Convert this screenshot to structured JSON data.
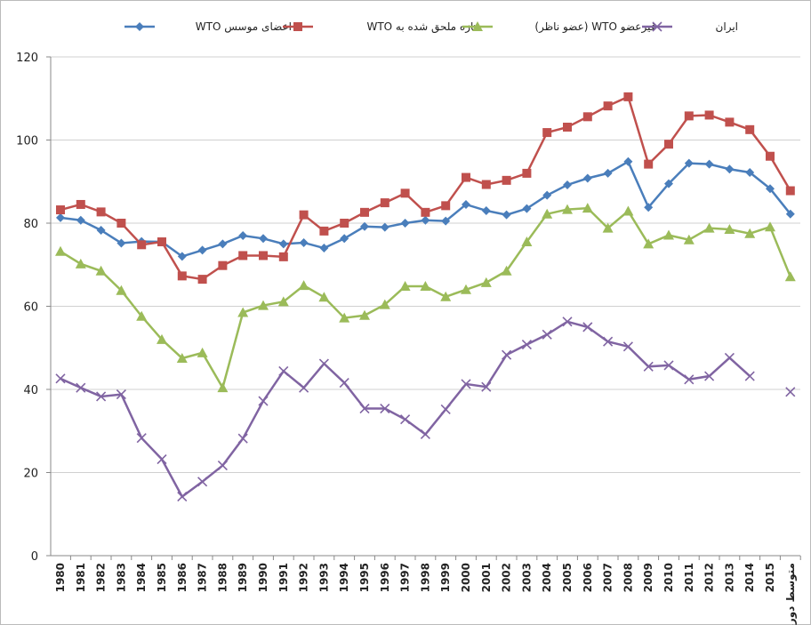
{
  "chart_data": {
    "type": "line",
    "categories": [
      "1980",
      "1981",
      "1982",
      "1983",
      "1984",
      "1985",
      "1986",
      "1987",
      "1988",
      "1989",
      "1990",
      "1991",
      "1992",
      "1993",
      "1994",
      "1995",
      "1996",
      "1997",
      "1998",
      "1999",
      "2000",
      "2001",
      "2002",
      "2003",
      "2004",
      "2005",
      "2006",
      "2007",
      "2008",
      "2009",
      "2010",
      "2011",
      "2012",
      "2013",
      "2014",
      "2015",
      "متوسط دوره"
    ],
    "series": [
      {
        "name": "اعضای موسس WTO",
        "color": "#4a7ebb",
        "marker": "diamond",
        "values": [
          81.3,
          80.7,
          78.3,
          75.2,
          75.6,
          75.5,
          72,
          73.5,
          75,
          77,
          76.3,
          75,
          75.3,
          74,
          76.3,
          79.2,
          79,
          80,
          80.7,
          80.5,
          84.5,
          83,
          82,
          83.5,
          86.7,
          89.2,
          90.8,
          92,
          94.8,
          83.8,
          89.5,
          94.4,
          94.2,
          93,
          92.2,
          88.3,
          82.2
        ]
      },
      {
        "name": "تازه ملحق شده به WTO",
        "color": "#c0504d",
        "marker": "square",
        "values": [
          83.2,
          84.5,
          82.7,
          80,
          74.8,
          75.5,
          67.3,
          66.5,
          69.8,
          72.2,
          72.2,
          71.9,
          82,
          78.1,
          80,
          82.6,
          84.9,
          87.2,
          82.6,
          84.2,
          91,
          89.3,
          90.3,
          92,
          101.8,
          103.1,
          105.6,
          108.2,
          110.4,
          94.2,
          99,
          105.8,
          106,
          104.3,
          102.5,
          96.1,
          87.8
        ]
      },
      {
        "name": "غیرعضو WTO (عضو ناظر)",
        "color": "#9bbb59",
        "marker": "triangle",
        "values": [
          73.2,
          70.2,
          68.5,
          63.8,
          57.6,
          52,
          47.5,
          48.8,
          40.4,
          58.5,
          60.2,
          61.1,
          65,
          62.2,
          57.2,
          57.8,
          60.4,
          64.8,
          64.8,
          62.3,
          64,
          65.7,
          68.5,
          75.5,
          82.2,
          83.3,
          83.6,
          78.8,
          82.9,
          75,
          77.1,
          76,
          78.8,
          78.5,
          77.5,
          79.1,
          67.1
        ]
      },
      {
        "name": "ایران",
        "color": "#8064a2",
        "marker": "x",
        "values": [
          42.6,
          40.4,
          38.3,
          38.8,
          28.3,
          23.2,
          14.2,
          17.8,
          21.7,
          28.2,
          37.2,
          44.4,
          40.4,
          46.2,
          41.6,
          35.4,
          35.4,
          32.8,
          29.2,
          35.2,
          41.3,
          40.6,
          48.3,
          50.8,
          53.2,
          56.3,
          55,
          51.5,
          50.3,
          45.5,
          45.8,
          42.4,
          43.2,
          47.6,
          43.2,
          null,
          39.4
        ]
      }
    ],
    "ylim": [
      0,
      120
    ],
    "yticks": [
      0,
      20,
      40,
      60,
      80,
      100,
      120
    ],
    "grid": true,
    "legend": "top"
  }
}
